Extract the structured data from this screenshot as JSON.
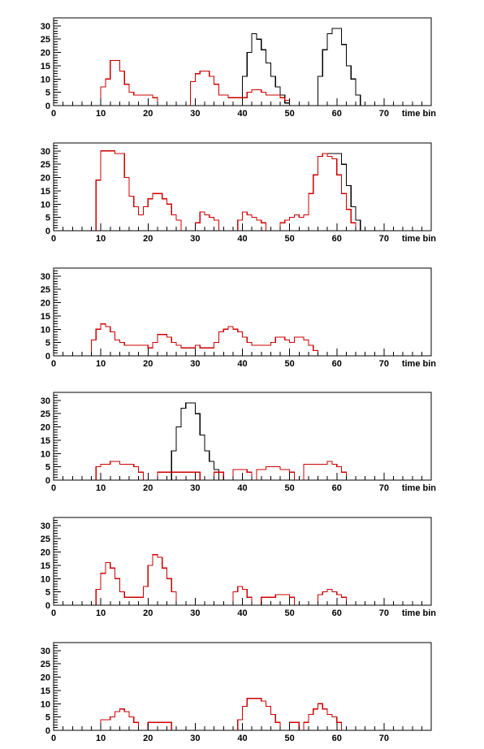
{
  "figure": {
    "x_tick_labels": [
      "0",
      "10",
      "20",
      "30",
      "40",
      "50",
      "60",
      "70"
    ],
    "y_tick_labels": [
      "0",
      "5",
      "10",
      "15",
      "20",
      "25",
      "30"
    ],
    "x_axis_title": "time bin",
    "colors": {
      "black_series": "#000000",
      "red_series": "#cc0000",
      "frame": "#000000"
    }
  },
  "chart_data": [
    {
      "type": "step-histogram",
      "xlabel": "time bin",
      "xlim": [
        0,
        80
      ],
      "ylim": [
        0,
        33
      ],
      "x_ticks": [
        0,
        10,
        20,
        30,
        40,
        50,
        60,
        70
      ],
      "y_ticks": [
        0,
        5,
        10,
        15,
        20,
        25,
        30
      ],
      "bin_start": 0,
      "bin_width": 1,
      "series": [
        {
          "color": "black",
          "values": [
            0,
            0,
            0,
            0,
            0,
            0,
            0,
            0,
            0,
            0,
            0,
            0,
            0,
            0,
            0,
            0,
            0,
            0,
            0,
            0,
            0,
            0,
            0,
            0,
            0,
            0,
            0,
            0,
            0,
            0,
            0,
            0,
            0,
            0,
            0,
            0,
            0,
            0,
            0,
            0,
            11,
            20,
            27,
            25,
            21,
            16,
            11,
            7,
            4,
            1,
            0,
            0,
            0,
            0,
            0,
            0,
            11,
            21,
            27,
            29,
            29,
            23,
            15,
            10,
            4,
            0,
            0,
            0,
            0,
            0,
            0,
            0,
            0,
            0,
            0,
            0,
            0,
            0,
            0,
            0
          ]
        },
        {
          "color": "red",
          "values": [
            0,
            0,
            0,
            0,
            0,
            0,
            0,
            0,
            0,
            0,
            7,
            10,
            17,
            17,
            13,
            8,
            5,
            4,
            4,
            4,
            4,
            3,
            0,
            0,
            0,
            0,
            0,
            0,
            0,
            9,
            12,
            13,
            13,
            11,
            8,
            4,
            4,
            3,
            3,
            3,
            3,
            5,
            6,
            6,
            5,
            4,
            4,
            4,
            3,
            2,
            0,
            0,
            0,
            0,
            0,
            0,
            0,
            0,
            0,
            0,
            0,
            0,
            0,
            0,
            0,
            0,
            0,
            0,
            0,
            0,
            0,
            0,
            0,
            0,
            0,
            0,
            0,
            0,
            0,
            0
          ]
        }
      ]
    },
    {
      "type": "step-histogram",
      "xlabel": "time bin",
      "xlim": [
        0,
        80
      ],
      "ylim": [
        0,
        33
      ],
      "x_ticks": [
        0,
        10,
        20,
        30,
        40,
        50,
        60,
        70
      ],
      "y_ticks": [
        0,
        5,
        10,
        15,
        20,
        25,
        30
      ],
      "bin_start": 0,
      "bin_width": 1,
      "series": [
        {
          "color": "black",
          "values": [
            0,
            0,
            0,
            0,
            0,
            0,
            0,
            0,
            0,
            19,
            30,
            30,
            30,
            29,
            29,
            20,
            13,
            9,
            6,
            9,
            12,
            14,
            14,
            12,
            10,
            6,
            4,
            0,
            0,
            0,
            3,
            7,
            6,
            5,
            4,
            0,
            0,
            0,
            0,
            4,
            7,
            6,
            5,
            4,
            3,
            0,
            0,
            0,
            3,
            4,
            5,
            6,
            5,
            6,
            14,
            21,
            28,
            29,
            29,
            29,
            29,
            25,
            17,
            9,
            4,
            0,
            0,
            0,
            0,
            0,
            0,
            0,
            0,
            0,
            0,
            0,
            0,
            0,
            0,
            0
          ]
        },
        {
          "color": "red",
          "values": [
            0,
            0,
            0,
            0,
            0,
            0,
            0,
            0,
            0,
            19,
            30,
            30,
            30,
            29,
            29,
            20,
            13,
            9,
            6,
            9,
            12,
            14,
            14,
            12,
            10,
            6,
            4,
            0,
            0,
            0,
            3,
            7,
            6,
            5,
            4,
            0,
            0,
            0,
            0,
            4,
            7,
            6,
            5,
            4,
            3,
            0,
            0,
            0,
            3,
            4,
            5,
            6,
            5,
            6,
            14,
            21,
            28,
            29,
            28,
            27,
            21,
            14,
            8,
            3,
            0,
            0,
            0,
            0,
            0,
            0,
            0,
            0,
            0,
            0,
            0,
            0,
            0,
            0,
            0,
            0
          ]
        }
      ]
    },
    {
      "type": "step-histogram",
      "xlabel": "time bin",
      "xlim": [
        0,
        80
      ],
      "ylim": [
        0,
        33
      ],
      "x_ticks": [
        0,
        10,
        20,
        30,
        40,
        50,
        60,
        70
      ],
      "y_ticks": [
        0,
        5,
        10,
        15,
        20,
        25,
        30
      ],
      "bin_start": 0,
      "bin_width": 1,
      "series": [
        {
          "color": "red",
          "values": [
            0,
            0,
            0,
            0,
            0,
            0,
            0,
            0,
            6,
            10,
            12,
            11,
            9,
            6,
            5,
            4,
            4,
            4,
            4,
            4,
            3,
            5,
            8,
            8,
            7,
            5,
            4,
            3,
            3,
            3,
            4,
            3,
            3,
            3,
            5,
            9,
            10,
            11,
            10,
            9,
            7,
            5,
            4,
            4,
            4,
            4,
            5,
            7,
            7,
            6,
            5,
            7,
            7,
            6,
            4,
            2,
            0,
            0,
            0,
            0,
            0,
            0,
            0,
            0,
            0,
            0,
            0,
            0,
            0,
            0,
            0,
            0,
            0,
            0,
            0,
            0,
            0,
            0,
            0,
            0
          ]
        }
      ]
    },
    {
      "type": "step-histogram",
      "xlabel": "time bin",
      "xlim": [
        0,
        80
      ],
      "ylim": [
        0,
        33
      ],
      "x_ticks": [
        0,
        10,
        20,
        30,
        40,
        50,
        60,
        70
      ],
      "y_ticks": [
        0,
        5,
        10,
        15,
        20,
        25,
        30
      ],
      "bin_start": 0,
      "bin_width": 1,
      "series": [
        {
          "color": "black",
          "values": [
            0,
            0,
            0,
            0,
            0,
            0,
            0,
            0,
            0,
            0,
            0,
            0,
            0,
            0,
            0,
            0,
            0,
            0,
            0,
            0,
            0,
            0,
            0,
            0,
            0,
            11,
            20,
            27,
            29,
            29,
            25,
            17,
            11,
            7,
            4,
            0,
            0,
            0,
            0,
            0,
            0,
            0,
            0,
            0,
            0,
            0,
            0,
            0,
            0,
            0,
            0,
            0,
            0,
            0,
            0,
            0,
            0,
            0,
            0,
            0,
            0,
            0,
            0,
            0,
            0,
            0,
            0,
            0,
            0,
            0,
            0,
            0,
            0,
            0,
            0,
            0,
            0,
            0,
            0,
            0
          ]
        },
        {
          "color": "red",
          "values": [
            0,
            0,
            0,
            0,
            0,
            0,
            0,
            0,
            0,
            5,
            6,
            6,
            7,
            7,
            6,
            6,
            6,
            5,
            3,
            0,
            0,
            0,
            3,
            3,
            3,
            3,
            3,
            3,
            3,
            3,
            3,
            0,
            0,
            0,
            3,
            3,
            0,
            0,
            4,
            4,
            4,
            3,
            0,
            4,
            4,
            5,
            5,
            5,
            4,
            4,
            3,
            0,
            0,
            6,
            6,
            6,
            6,
            6,
            7,
            6,
            5,
            3,
            0,
            0,
            0,
            0,
            0,
            0,
            0,
            0,
            0,
            0,
            0,
            0,
            0,
            0,
            0,
            0,
            0,
            0
          ]
        }
      ]
    },
    {
      "type": "step-histogram",
      "xlabel": "time bin",
      "xlim": [
        0,
        80
      ],
      "ylim": [
        0,
        33
      ],
      "x_ticks": [
        0,
        10,
        20,
        30,
        40,
        50,
        60,
        70
      ],
      "y_ticks": [
        0,
        5,
        10,
        15,
        20,
        25,
        30
      ],
      "bin_start": 0,
      "bin_width": 1,
      "series": [
        {
          "color": "red",
          "values": [
            0,
            0,
            0,
            0,
            0,
            0,
            0,
            0,
            0,
            6,
            12,
            16,
            14,
            10,
            5,
            3,
            3,
            3,
            3,
            7,
            15,
            19,
            18,
            14,
            10,
            5,
            0,
            0,
            0,
            0,
            0,
            0,
            0,
            0,
            0,
            0,
            0,
            0,
            5,
            7,
            6,
            3,
            0,
            0,
            3,
            3,
            3,
            4,
            4,
            4,
            3,
            0,
            0,
            0,
            0,
            0,
            4,
            5,
            6,
            5,
            4,
            3,
            0,
            0,
            0,
            0,
            0,
            0,
            0,
            0,
            0,
            0,
            0,
            0,
            0,
            0,
            0,
            0,
            0,
            0
          ]
        }
      ]
    },
    {
      "type": "step-histogram",
      "xlabel": "",
      "xlim": [
        0,
        80
      ],
      "ylim": [
        0,
        33
      ],
      "x_ticks": [
        0,
        10,
        20,
        30,
        40,
        50,
        60,
        70
      ],
      "y_ticks": [
        0,
        5,
        10,
        15,
        20,
        25,
        30
      ],
      "bin_start": 0,
      "bin_width": 1,
      "series": [
        {
          "color": "red",
          "values": [
            0,
            0,
            0,
            0,
            0,
            0,
            0,
            0,
            0,
            0,
            4,
            4,
            5,
            7,
            8,
            7,
            5,
            3,
            0,
            0,
            3,
            3,
            3,
            3,
            3,
            0,
            0,
            0,
            0,
            0,
            0,
            0,
            0,
            0,
            0,
            0,
            0,
            0,
            0,
            4,
            9,
            12,
            12,
            12,
            11,
            9,
            6,
            3,
            0,
            0,
            3,
            3,
            0,
            3,
            6,
            8,
            10,
            8,
            6,
            5,
            3,
            0,
            0,
            0,
            0,
            0,
            0,
            0,
            0,
            0,
            0,
            0,
            0,
            0,
            0,
            0,
            0,
            0,
            0,
            0
          ]
        }
      ]
    }
  ]
}
